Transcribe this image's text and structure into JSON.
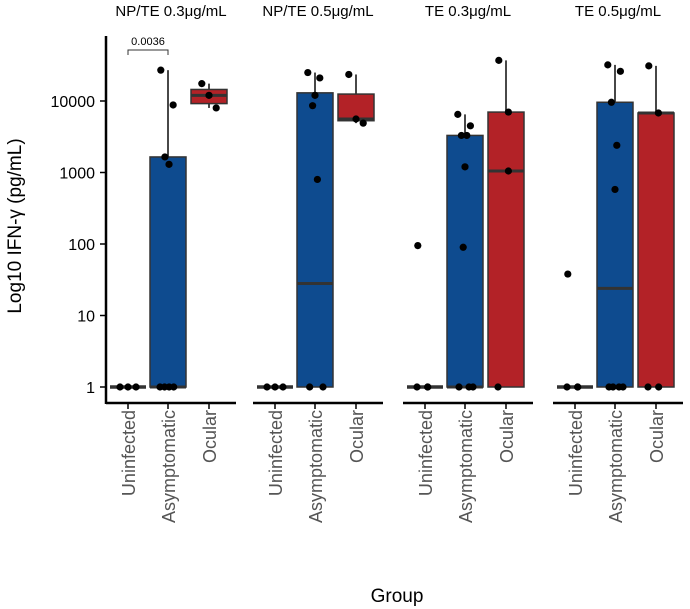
{
  "chart_data": {
    "type": "box",
    "title": "",
    "xlabel": "Group",
    "ylabel": "Log10 IFN-γ (pg/mL)",
    "yscale": "log",
    "ylim": [
      0.75,
      50000
    ],
    "yticks": [
      {
        "value": 1,
        "label": "1"
      },
      {
        "value": 10,
        "label": "10"
      },
      {
        "value": 100,
        "label": "100"
      },
      {
        "value": 1000,
        "label": "1000"
      },
      {
        "value": 10000,
        "label": "10000"
      }
    ],
    "categories": [
      "Uninfected",
      "Asymptomatic",
      "Ocular"
    ],
    "colors": {
      "Uninfected": "#4a4a4a",
      "Asymptomatic": "#0e4b8f",
      "Ocular": "#b32227"
    },
    "legend": "none",
    "grid": false,
    "panels": [
      {
        "title": "NP/TE 0.3μg/mL",
        "groups": [
          {
            "name": "Uninfected",
            "q1": 1,
            "median": 1,
            "q3": 1,
            "whisker_low": 1,
            "whisker_high": 1,
            "points": [
              1,
              1,
              1
            ]
          },
          {
            "name": "Asymptomatic",
            "q1": 1,
            "median": 1,
            "q3": 1650,
            "whisker_low": 1,
            "whisker_high": 27000,
            "points": [
              27000,
              8800,
              1650,
              1300,
              1,
              1,
              1,
              1
            ]
          },
          {
            "name": "Ocular",
            "q1": 9200,
            "median": 12000,
            "q3": 14500,
            "whisker_low": 8000,
            "whisker_high": 17500,
            "points": [
              17500,
              12000,
              8000
            ]
          }
        ],
        "annotations": [
          {
            "from": "Uninfected",
            "to": "Asymptomatic",
            "text": "0.0036"
          }
        ]
      },
      {
        "title": "NP/TE 0.5μg/mL",
        "groups": [
          {
            "name": "Uninfected",
            "q1": 1,
            "median": 1,
            "q3": 1,
            "whisker_low": 1,
            "whisker_high": 1,
            "points": [
              1,
              1,
              1
            ]
          },
          {
            "name": "Asymptomatic",
            "q1": 1,
            "median": 28,
            "q3": 13000,
            "whisker_low": 1,
            "whisker_high": 25000,
            "points": [
              25000,
              21000,
              8600,
              12000,
              800,
              1,
              1
            ]
          },
          {
            "name": "Ocular",
            "q1": 5300,
            "median": 5600,
            "q3": 12500,
            "whisker_low": 4900,
            "whisker_high": 23500,
            "points": [
              23500,
              5600,
              4900
            ]
          }
        ],
        "annotations": []
      },
      {
        "title": "TE 0.3μg/mL",
        "groups": [
          {
            "name": "Uninfected",
            "q1": 1,
            "median": 1,
            "q3": 1,
            "whisker_low": 1,
            "whisker_high": 1,
            "points": [
              95,
              1,
              1,
              1
            ]
          },
          {
            "name": "Asymptomatic",
            "q1": 1,
            "median": 1,
            "q3": 3300,
            "whisker_low": 1,
            "whisker_high": 6500,
            "points": [
              6500,
              4500,
              3300,
              3300,
              1200,
              90,
              1,
              1,
              1
            ]
          },
          {
            "name": "Ocular",
            "q1": 1,
            "median": 1050,
            "q3": 7000,
            "whisker_low": 1,
            "whisker_high": 37000,
            "points": [
              37000,
              7000,
              1050,
              1
            ]
          }
        ],
        "annotations": []
      },
      {
        "title": "TE 0.5μg/mL",
        "groups": [
          {
            "name": "Uninfected",
            "q1": 1,
            "median": 1,
            "q3": 1,
            "whisker_low": 1,
            "whisker_high": 1,
            "points": [
              38,
              1,
              1,
              1
            ]
          },
          {
            "name": "Asymptomatic",
            "q1": 1,
            "median": 24,
            "q3": 9600,
            "whisker_low": 1,
            "whisker_high": 32000,
            "points": [
              32000,
              26000,
              9600,
              2400,
              580,
              1,
              1,
              1,
              1
            ]
          },
          {
            "name": "Ocular",
            "q1": 1,
            "median": 6800,
            "q3": 6800,
            "whisker_low": 1,
            "whisker_high": 31000,
            "points": [
              31000,
              6800,
              1,
              1
            ]
          }
        ],
        "annotations": []
      }
    ]
  }
}
